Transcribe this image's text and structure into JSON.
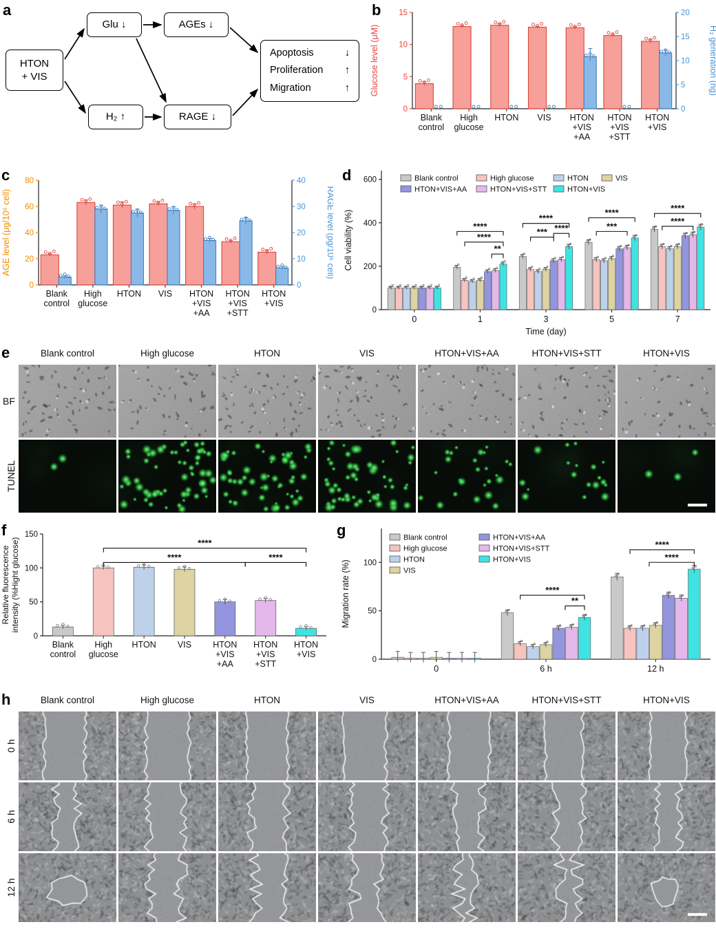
{
  "panels": {
    "a": "a",
    "b": "b",
    "c": "c",
    "d": "d",
    "e": "e",
    "f": "f",
    "g": "g",
    "h": "h"
  },
  "diagram": {
    "source": [
      "HTON",
      "+ VIS"
    ],
    "glu": "Glu ↓",
    "ages": "AGEs ↓",
    "h2": "H₂ ↑",
    "rage": "RAGE ↓",
    "outcomes": [
      {
        "label": "Apoptosis",
        "arrow": "↓"
      },
      {
        "label": "Proliferation",
        "arrow": "↑"
      },
      {
        "label": "Migration",
        "arrow": "↑"
      }
    ]
  },
  "chart_data": [
    {
      "id": "b",
      "type": "dual-axis-bar",
      "categories": [
        [
          "Blank",
          "control"
        ],
        [
          "High",
          "glucose"
        ],
        [
          "HTON"
        ],
        [
          "VIS"
        ],
        [
          "HTON",
          "+VIS",
          "+AA"
        ],
        [
          "HTON",
          "+VIS",
          "+STT"
        ],
        [
          "HTON",
          "+VIS"
        ]
      ],
      "left": {
        "label": "Glucose level (μM)",
        "color": "#e8453c",
        "bar": "#f7a09a",
        "edge": "#d9453c",
        "lim": [
          0,
          15
        ],
        "ticks": [
          0,
          5,
          10,
          15
        ],
        "values": [
          3.9,
          12.8,
          13.0,
          12.7,
          12.6,
          11.4,
          10.5
        ],
        "err": [
          0.3,
          0.2,
          0.25,
          0.15,
          0.2,
          0.25,
          0.3
        ]
      },
      "right": {
        "label": "H₂ generation (ng)",
        "color": "#4a94d8",
        "bar": "#8ab9e8",
        "edge": "#3f7fc1",
        "lim": [
          0,
          20
        ],
        "ticks": [
          0,
          5,
          10,
          15,
          20
        ],
        "values": [
          0,
          0,
          0,
          0,
          10.8,
          0,
          11.6
        ],
        "err": [
          0,
          0,
          0,
          0,
          1.7,
          0,
          0.6
        ]
      }
    },
    {
      "id": "c",
      "type": "dual-axis-bar",
      "categories": [
        [
          "Blank",
          "control"
        ],
        [
          "High",
          "glucose"
        ],
        [
          "HTON"
        ],
        [
          "VIS"
        ],
        [
          "HTON",
          "+VIS",
          "+AA"
        ],
        [
          "HTON",
          "+VIS",
          "+STT"
        ],
        [
          "HTON",
          "+VIS"
        ]
      ],
      "left": {
        "label": "AGE level (μg/10⁶ cell)",
        "color": "#f08c00",
        "bar": "#f7a09a",
        "edge": "#d9453c",
        "lim": [
          0,
          80
        ],
        "ticks": [
          0,
          20,
          40,
          60,
          80
        ],
        "values": [
          23,
          63,
          61,
          62,
          60,
          33,
          25
        ],
        "err": [
          1,
          2,
          2.5,
          1.5,
          2,
          1,
          1.5
        ]
      },
      "right": {
        "label": "RAGE level (pg/10⁶ cell)",
        "color": "#4a94d8",
        "bar": "#8ab9e8",
        "edge": "#3f7fc1",
        "lim": [
          0,
          40
        ],
        "ticks": [
          0,
          10,
          20,
          30,
          40
        ],
        "values": [
          3,
          29,
          27.5,
          28.5,
          17,
          24.5,
          6.5
        ],
        "err": [
          0.5,
          1.5,
          1.5,
          1.5,
          0.8,
          1.2,
          0.6
        ]
      }
    },
    {
      "id": "d",
      "type": "grouped-bar",
      "xlabel": "Time (day)",
      "ylabel": "Cell viability (%)",
      "categories": [
        "0",
        "1",
        "3",
        "5",
        "7"
      ],
      "ylim": [
        0,
        640
      ],
      "yticks": [
        0,
        200,
        400,
        600
      ],
      "series": [
        {
          "name": "Blank control",
          "color": "#c9c9c9",
          "values": [
            100,
            195,
            245,
            310,
            370
          ]
        },
        {
          "name": "High glucose",
          "color": "#f6c3bf",
          "values": [
            100,
            135,
            185,
            230,
            290
          ]
        },
        {
          "name": "HTON",
          "color": "#bdd1ea",
          "values": [
            100,
            130,
            175,
            225,
            280
          ]
        },
        {
          "name": "VIS",
          "color": "#ddd3a3",
          "values": [
            100,
            135,
            185,
            235,
            290
          ]
        },
        {
          "name": "HTON+VIS+AA",
          "color": "#9395de",
          "values": [
            100,
            175,
            225,
            280,
            340
          ]
        },
        {
          "name": "HTON+VIS+STT",
          "color": "#e5b8ec",
          "values": [
            100,
            180,
            230,
            285,
            345
          ]
        },
        {
          "name": "HTON+VIS",
          "color": "#3fe3e3",
          "values": [
            100,
            210,
            290,
            330,
            380
          ]
        }
      ],
      "sig": [
        {
          "g": 1,
          "s1": 0,
          "s2": 6,
          "y": 360,
          "label": "****"
        },
        {
          "g": 1,
          "s1": 1,
          "s2": 6,
          "y": 311,
          "label": "****"
        },
        {
          "g": 1,
          "s1": 4.5,
          "s2": 6,
          "y": 256,
          "label": "**"
        },
        {
          "g": 2,
          "s1": 0,
          "s2": 6,
          "y": 397,
          "label": "****"
        },
        {
          "g": 2,
          "s1": 1,
          "s2": 4,
          "y": 334,
          "label": "***"
        },
        {
          "g": 2,
          "s1": 4,
          "s2": 6,
          "y": 351,
          "label": "****"
        },
        {
          "g": 3,
          "s1": 0,
          "s2": 6,
          "y": 423,
          "label": "****"
        },
        {
          "g": 3,
          "s1": 1,
          "s2": 5,
          "y": 360,
          "label": "***"
        },
        {
          "g": 4,
          "s1": 0,
          "s2": 6,
          "y": 443,
          "label": "****"
        },
        {
          "g": 4,
          "s1": 1,
          "s2": 5,
          "y": 384,
          "label": "****"
        }
      ]
    },
    {
      "id": "f",
      "type": "bar",
      "ylabel": [
        "Relative fluorescence",
        "intensity (%Hight glucose)"
      ],
      "categories": [
        [
          "Blank",
          "control"
        ],
        [
          "High",
          "glucose"
        ],
        [
          "HTON"
        ],
        [
          "VIS"
        ],
        [
          "HTON",
          "+VIS",
          "+AA"
        ],
        [
          "HTON",
          "+VIS",
          "+STT"
        ],
        [
          "HTON",
          "+VIS"
        ]
      ],
      "ylim": [
        0,
        150
      ],
      "yticks": [
        0,
        50,
        100,
        150
      ],
      "values": [
        13,
        100,
        101,
        98,
        50,
        52,
        11
      ],
      "err": [
        1.5,
        1.5,
        2.5,
        2.5,
        2.5,
        2,
        1.5
      ],
      "colors": [
        "#c9c9c9",
        "#f6c3bf",
        "#bdd1ea",
        "#ddd3a3",
        "#9395de",
        "#e5b8ec",
        "#3fe3e3"
      ],
      "sig": [
        {
          "s1": 1,
          "s2": 6,
          "y": 129,
          "label": "****"
        },
        {
          "s1": 1,
          "s2": 4.5,
          "y": 108,
          "label": "****"
        },
        {
          "s1": 4.5,
          "s2": 6,
          "y": 108,
          "label": "****"
        }
      ]
    },
    {
      "id": "g",
      "type": "grouped-bar",
      "xlabel": "",
      "ylabel": "Migration rate (%)",
      "categories": [
        "0",
        "6 h",
        "12 h"
      ],
      "ylim": [
        0,
        135
      ],
      "yticks": [
        0,
        50,
        100
      ],
      "series": [
        {
          "name": "Blank control",
          "color": "#c9c9c9",
          "values": [
            2,
            48,
            85
          ]
        },
        {
          "name": "High glucose",
          "color": "#f6c3bf",
          "values": [
            1,
            16,
            32
          ]
        },
        {
          "name": "HTON",
          "color": "#bdd1ea",
          "values": [
            1,
            13,
            32
          ]
        },
        {
          "name": "VIS",
          "color": "#ddd3a3",
          "values": [
            2,
            15,
            35
          ]
        },
        {
          "name": "HTON+VIS+AA",
          "color": "#9395de",
          "values": [
            1,
            32,
            66
          ]
        },
        {
          "name": "HTON+VIS+STT",
          "color": "#e5b8ec",
          "values": [
            1,
            33,
            63
          ]
        },
        {
          "name": "HTON+VIS",
          "color": "#3fe3e3",
          "values": [
            1,
            43,
            93
          ]
        }
      ],
      "sig": [
        {
          "g": 1,
          "s1": 1,
          "s2": 6,
          "y": 66,
          "label": "****"
        },
        {
          "g": 1,
          "s1": 4.5,
          "s2": 6,
          "y": 55,
          "label": "**"
        },
        {
          "g": 2,
          "s1": 1,
          "s2": 6,
          "y": 113,
          "label": "****"
        },
        {
          "g": 2,
          "s1": 2.5,
          "s2": 6,
          "y": 100,
          "label": "****"
        }
      ]
    }
  ],
  "panel_e": {
    "columns": [
      "Blank control",
      "High glucose",
      "HTON",
      "VIS",
      "HTON+VIS+AA",
      "HTON+VIS+STT",
      "HTON+VIS"
    ],
    "rows": [
      "BF",
      "TUNEL"
    ],
    "tunel_dot_counts": [
      2,
      60,
      55,
      58,
      25,
      18,
      3
    ]
  },
  "panel_h": {
    "columns": [
      "Blank control",
      "High glucose",
      "HTON",
      "VIS",
      "HTON+VIS+AA",
      "HTON+VIS+STT",
      "HTON+VIS"
    ],
    "rows": [
      "0 h",
      "6 h",
      "12 h"
    ],
    "gap_fractions": [
      [
        0.42,
        0.44,
        0.42,
        0.43,
        0.41,
        0.38,
        0.37
      ],
      [
        0.22,
        0.36,
        0.35,
        0.34,
        0.27,
        0.28,
        0.22
      ],
      [
        0.1,
        0.3,
        0.28,
        0.28,
        0.15,
        0.16,
        0.06
      ]
    ]
  }
}
